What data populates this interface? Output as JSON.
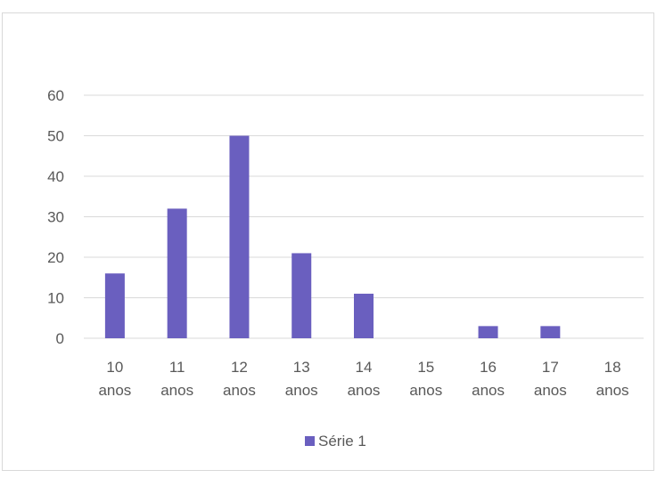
{
  "chart_data": {
    "type": "bar",
    "categories": [
      [
        "10",
        "anos"
      ],
      [
        "11",
        "anos"
      ],
      [
        "12",
        "anos"
      ],
      [
        "13",
        "anos"
      ],
      [
        "14",
        "anos"
      ],
      [
        "15",
        "anos"
      ],
      [
        "16",
        "anos"
      ],
      [
        "17",
        "anos"
      ],
      [
        "18",
        "anos"
      ]
    ],
    "series": [
      {
        "name": "Série 1",
        "values": [
          16,
          32,
          50,
          21,
          11,
          0,
          3,
          3,
          0
        ],
        "color": "#6a5fbf"
      }
    ],
    "ylim": [
      0,
      60
    ],
    "yticks": [
      0,
      10,
      20,
      30,
      40,
      50,
      60
    ],
    "grid": true,
    "legend": "bottom",
    "colors": {
      "grid": "#d9d9d9",
      "axis": "#d9d9d9",
      "text": "#595959",
      "border": "#d9d9d9"
    }
  }
}
